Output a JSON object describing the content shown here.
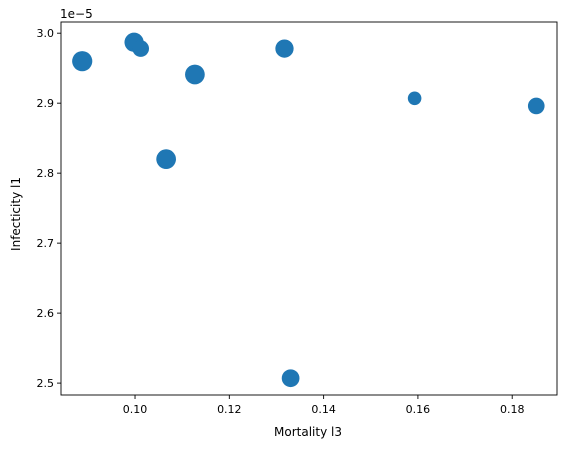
{
  "chart_data": {
    "type": "scatter",
    "title": "",
    "xlabel": "Mortality l3",
    "ylabel": "Infecticity l1",
    "y_offset_label": "1e−5",
    "xlim": [
      0.0843,
      0.1895
    ],
    "ylim": [
      2.483,
      3.016
    ],
    "x_ticks": [
      0.1,
      0.12,
      0.14,
      0.16,
      0.18
    ],
    "x_tick_labels": [
      "0.10",
      "0.12",
      "0.14",
      "0.16",
      "0.18"
    ],
    "y_ticks": [
      2.5,
      2.6,
      2.7,
      2.8,
      2.9,
      3.0
    ],
    "y_tick_labels": [
      "2.5",
      "2.6",
      "2.7",
      "2.8",
      "2.9",
      "3.0"
    ],
    "grid": false,
    "marker_color": "#1f77b4",
    "points": [
      {
        "x": 0.0888,
        "y": 2.96,
        "size": 220
      },
      {
        "x": 0.0998,
        "y": 2.987,
        "size": 200
      },
      {
        "x": 0.1012,
        "y": 2.978,
        "size": 150
      },
      {
        "x": 0.1066,
        "y": 2.82,
        "size": 210
      },
      {
        "x": 0.1127,
        "y": 2.941,
        "size": 210
      },
      {
        "x": 0.1317,
        "y": 2.978,
        "size": 180
      },
      {
        "x": 0.133,
        "y": 2.507,
        "size": 170
      },
      {
        "x": 0.1593,
        "y": 2.907,
        "size": 100
      },
      {
        "x": 0.1851,
        "y": 2.896,
        "size": 150
      }
    ]
  }
}
